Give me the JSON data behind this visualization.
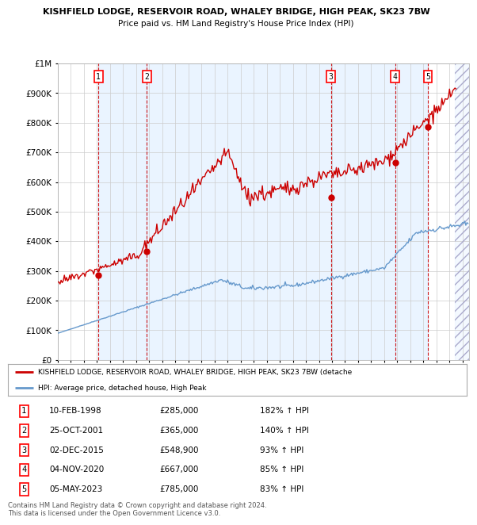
{
  "title1": "KISHFIELD LODGE, RESERVOIR ROAD, WHALEY BRIDGE, HIGH PEAK, SK23 7BW",
  "title2": "Price paid vs. HM Land Registry's House Price Index (HPI)",
  "ylabel_vals": [
    "£0",
    "£100K",
    "£200K",
    "£300K",
    "£400K",
    "£500K",
    "£600K",
    "£700K",
    "£800K",
    "£900K",
    "£1M"
  ],
  "ylim": [
    0,
    1000000
  ],
  "xlim_start": 1995.0,
  "xlim_end": 2026.5,
  "sale_dates": [
    1998.11,
    2001.82,
    2015.92,
    2020.84,
    2023.34
  ],
  "sale_prices": [
    285000,
    365000,
    548900,
    667000,
    785000
  ],
  "sale_labels": [
    "1",
    "2",
    "3",
    "4",
    "5"
  ],
  "sale_info": [
    {
      "label": "1",
      "date": "10-FEB-1998",
      "price": "£285,000",
      "hpi": "182% ↑ HPI"
    },
    {
      "label": "2",
      "date": "25-OCT-2001",
      "price": "£365,000",
      "hpi": "140% ↑ HPI"
    },
    {
      "label": "3",
      "date": "02-DEC-2015",
      "price": "£548,900",
      "hpi": "93% ↑ HPI"
    },
    {
      "label": "4",
      "date": "04-NOV-2020",
      "price": "£667,000",
      "hpi": "85% ↑ HPI"
    },
    {
      "label": "5",
      "date": "05-MAY-2023",
      "price": "£785,000",
      "hpi": "83% ↑ HPI"
    }
  ],
  "legend_property": "KISHFIELD LODGE, RESERVOIR ROAD, WHALEY BRIDGE, HIGH PEAK, SK23 7BW (detache",
  "legend_hpi": "HPI: Average price, detached house, High Peak",
  "property_color": "#cc0000",
  "hpi_color": "#6699cc",
  "background_color": "#ffffff",
  "grid_color": "#cccccc",
  "vline_color": "#cc0000",
  "shade_color": "#ddeeff",
  "hatch_color": "#aaaacc",
  "footer": "Contains HM Land Registry data © Crown copyright and database right 2024.\nThis data is licensed under the Open Government Licence v3.0."
}
